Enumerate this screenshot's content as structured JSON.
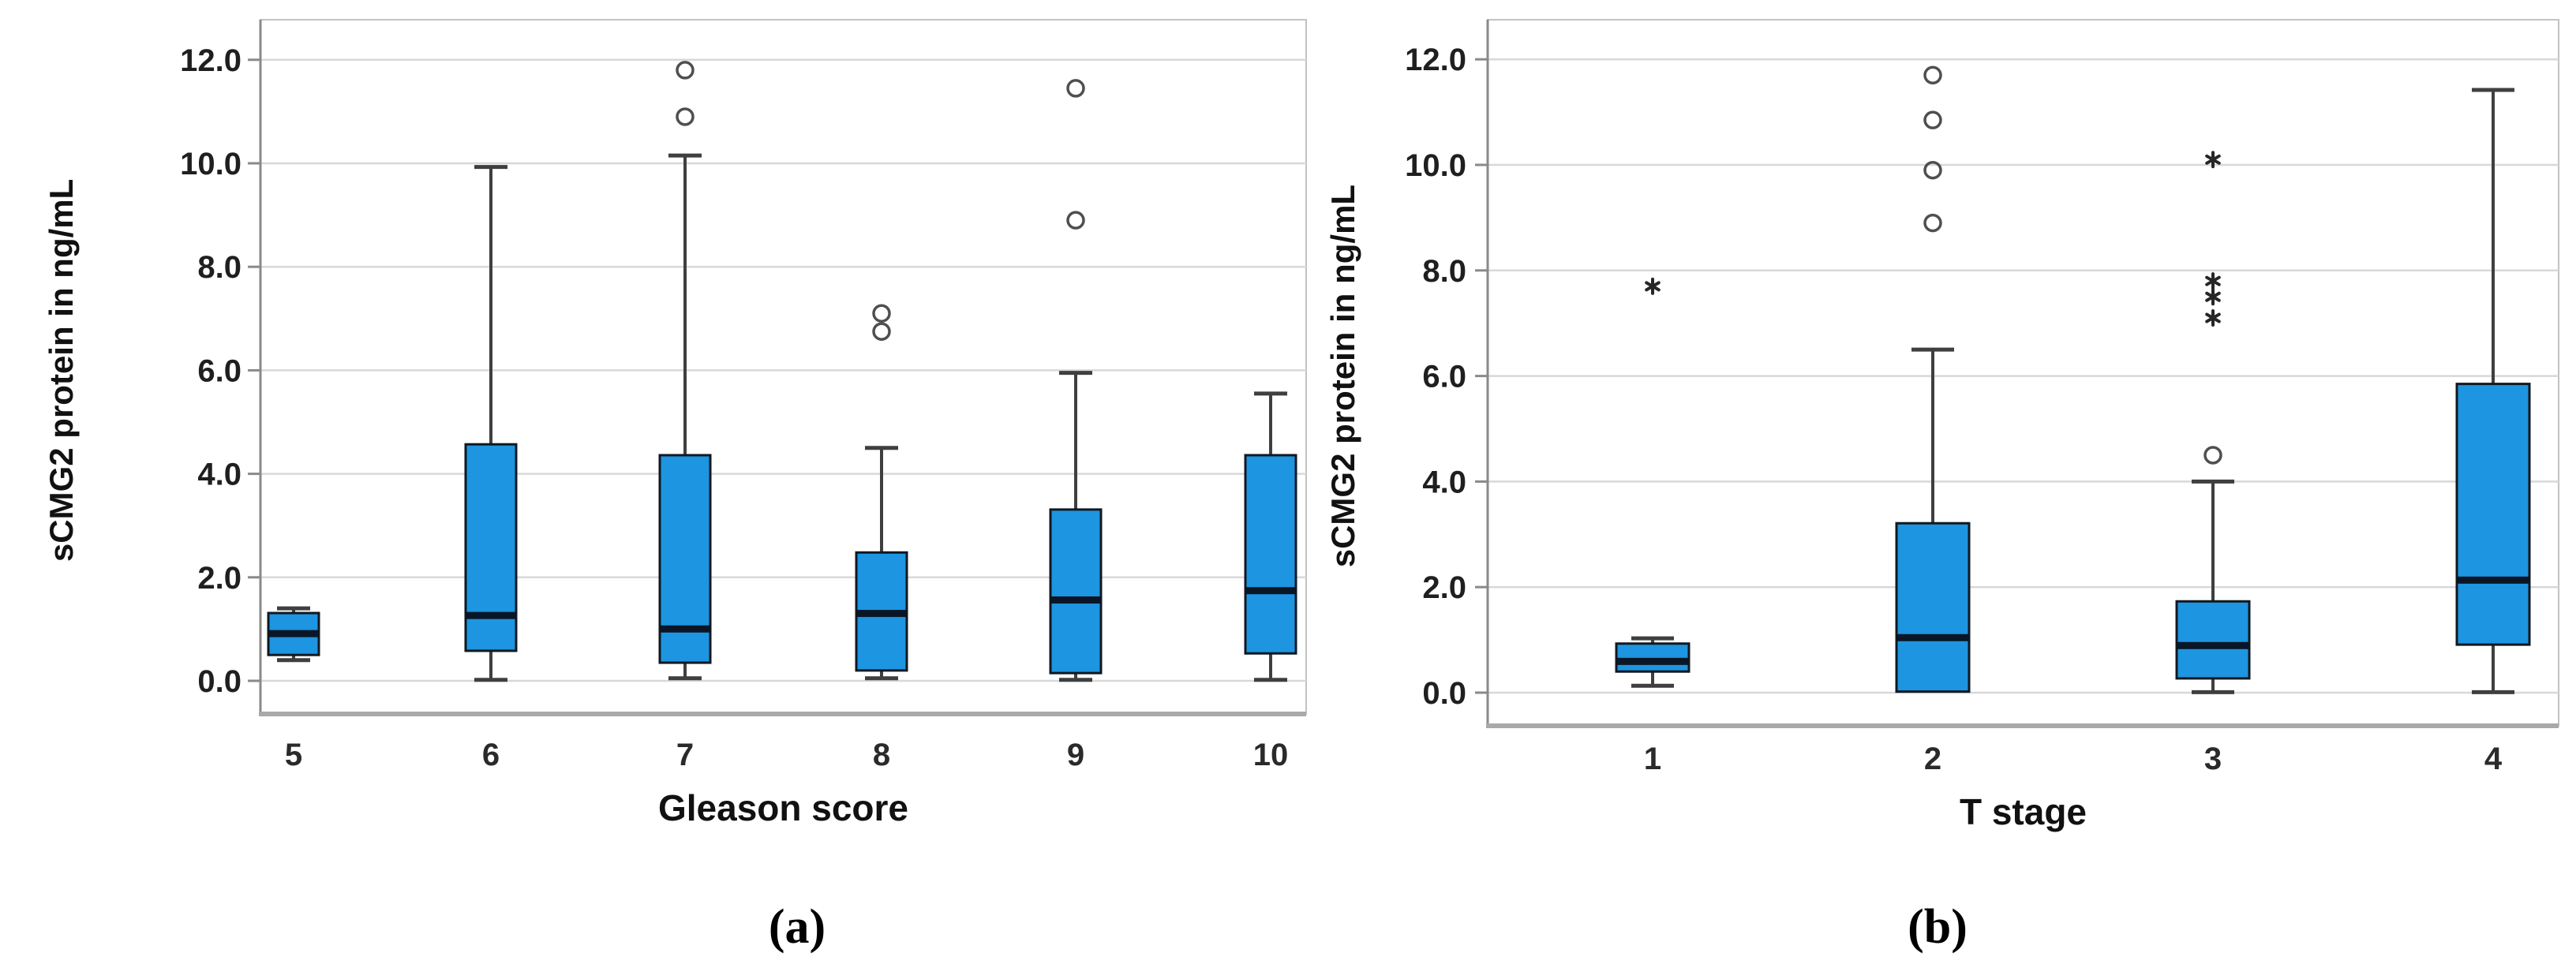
{
  "figure": {
    "description": "Two side-by-side box plots of sCMG2 protein concentration",
    "background": "#ffffff"
  },
  "colors": {
    "box_fill": "#1d95e0",
    "box_border": "#101820",
    "median": "#0a1626",
    "whisker": "#3f3f3f",
    "gridline": "#d8d8d8",
    "frame": "#c2c2c2",
    "axis_line": "#8a8a8a",
    "baseline": "#a9a9a9",
    "text": "#1f1f1f",
    "outlier": "#4f4f4f"
  },
  "chart_data": [
    {
      "type": "box",
      "panel_id": "a",
      "caption": "(a)",
      "xlabel": "Gleason score",
      "ylabel": "sCMG2 protein in ng/mL",
      "ylim": [
        0,
        12
      ],
      "grid": true,
      "yticks": {
        "values": [
          0,
          2,
          4,
          6,
          8,
          10,
          12
        ],
        "labels": [
          "0.0",
          "2.0",
          "4.0",
          "6.0",
          "8.0",
          "10.0",
          "12.0"
        ]
      },
      "categories": [
        "5",
        "6",
        "7",
        "8",
        "9",
        "10"
      ],
      "boxes": [
        {
          "label": "5",
          "whisker_low": 0.4,
          "q1": 0.5,
          "median": 0.92,
          "q3": 1.31,
          "whisker_high": 1.4,
          "outliers_mild": [],
          "outliers_extreme": []
        },
        {
          "label": "6",
          "whisker_low": 0.02,
          "q1": 0.58,
          "median": 1.27,
          "q3": 4.57,
          "whisker_high": 9.93,
          "outliers_mild": [],
          "outliers_extreme": []
        },
        {
          "label": "7",
          "whisker_low": 0.05,
          "q1": 0.35,
          "median": 1.01,
          "q3": 4.36,
          "whisker_high": 10.15,
          "outliers_mild": [
            10.9,
            11.8
          ],
          "outliers_extreme": []
        },
        {
          "label": "8",
          "whisker_low": 0.05,
          "q1": 0.2,
          "median": 1.31,
          "q3": 2.48,
          "whisker_high": 4.5,
          "outliers_mild": [
            6.75,
            7.1
          ],
          "outliers_extreme": []
        },
        {
          "label": "9",
          "whisker_low": 0.02,
          "q1": 0.15,
          "median": 1.57,
          "q3": 3.31,
          "whisker_high": 5.95,
          "outliers_mild": [
            8.9,
            11.45
          ],
          "outliers_extreme": []
        },
        {
          "label": "10",
          "whisker_low": 0.02,
          "q1": 0.53,
          "median": 1.75,
          "q3": 4.36,
          "whisker_high": 5.55,
          "outliers_mild": [],
          "outliers_extreme": []
        }
      ]
    },
    {
      "type": "box",
      "panel_id": "b",
      "caption": "(b)",
      "xlabel": "T stage",
      "ylabel": "sCMG2 protein in ng/mL",
      "ylim": [
        0,
        12
      ],
      "grid": true,
      "yticks": {
        "values": [
          0,
          2,
          4,
          6,
          8,
          10,
          12
        ],
        "labels": [
          "0.0",
          "2.0",
          "4.0",
          "6.0",
          "8.0",
          "10.0",
          "12.0"
        ]
      },
      "categories": [
        "1",
        "2",
        "3",
        "4"
      ],
      "boxes": [
        {
          "label": "1",
          "whisker_low": 0.13,
          "q1": 0.4,
          "median": 0.6,
          "q3": 0.93,
          "whisker_high": 1.03,
          "outliers_mild": [],
          "outliers_extreme": [
            7.7
          ]
        },
        {
          "label": "2",
          "whisker_low": 0.0,
          "q1": 0.02,
          "median": 1.05,
          "q3": 3.21,
          "whisker_high": 6.5,
          "outliers_mild": [
            8.9,
            9.9,
            10.85,
            11.7
          ],
          "outliers_extreme": []
        },
        {
          "label": "3",
          "whisker_low": 0.01,
          "q1": 0.27,
          "median": 0.9,
          "q3": 1.73,
          "whisker_high": 4.0,
          "outliers_mild": [
            4.5
          ],
          "outliers_extreme": [
            7.1,
            7.5,
            7.8,
            10.1
          ]
        },
        {
          "label": "4",
          "whisker_low": 0.01,
          "q1": 0.91,
          "median": 2.14,
          "q3": 5.85,
          "whisker_high": 11.42,
          "outliers_mild": [],
          "outliers_extreme": []
        }
      ]
    }
  ]
}
